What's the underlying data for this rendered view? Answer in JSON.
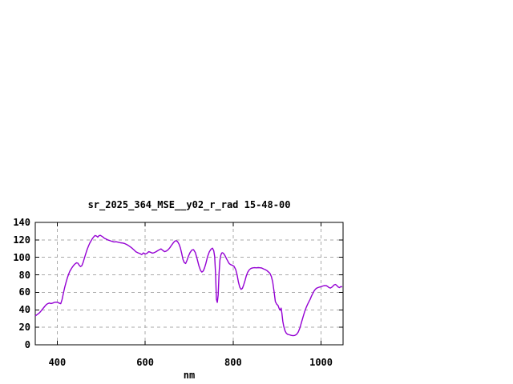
{
  "window": {
    "background": "#ffffff"
  },
  "chart_data": {
    "type": "line",
    "title": "sr_2025_364_MSE__y02_r_rad 15-48-00",
    "xlabel": "nm",
    "ylabel": "",
    "xlim": [
      350,
      1050
    ],
    "ylim": [
      0,
      140
    ],
    "x_ticks": [
      400,
      600,
      800,
      1000
    ],
    "y_ticks": [
      0,
      20,
      40,
      60,
      80,
      100,
      120,
      140
    ],
    "grid": true,
    "legend_position": "none",
    "colors": {
      "line": "#9400d3",
      "grid": "#aaaaaa",
      "axis": "#000000",
      "text": "#000000",
      "background": "#ffffff"
    },
    "series": [
      {
        "name": "sr_2025_364_MSE__y02_r_rad 15-48-00",
        "points": [
          [
            350,
            33
          ],
          [
            354,
            34.5
          ],
          [
            358,
            36
          ],
          [
            362,
            38
          ],
          [
            366,
            40.5
          ],
          [
            370,
            43
          ],
          [
            374,
            45.5
          ],
          [
            378,
            47
          ],
          [
            382,
            47.8
          ],
          [
            386,
            47.2
          ],
          [
            390,
            47.8
          ],
          [
            394,
            48.6
          ],
          [
            398,
            48.8
          ],
          [
            402,
            48.4
          ],
          [
            405,
            47.5
          ],
          [
            408,
            47
          ],
          [
            411,
            52
          ],
          [
            414,
            59
          ],
          [
            417,
            66
          ],
          [
            420,
            71.5
          ],
          [
            423,
            76.5
          ],
          [
            426,
            81
          ],
          [
            429,
            84.5
          ],
          [
            432,
            87
          ],
          [
            435,
            89.3
          ],
          [
            438,
            91.3
          ],
          [
            441,
            92.8
          ],
          [
            444,
            93.8
          ],
          [
            447,
            93.3
          ],
          [
            450,
            91
          ],
          [
            453,
            89.5
          ],
          [
            456,
            90.5
          ],
          [
            459,
            94.5
          ],
          [
            462,
            99.5
          ],
          [
            465,
            104.5
          ],
          [
            468,
            109
          ],
          [
            471,
            113
          ],
          [
            474,
            116.3
          ],
          [
            477,
            119
          ],
          [
            480,
            121.5
          ],
          [
            483,
            123.5
          ],
          [
            486,
            125
          ],
          [
            489,
            124.4
          ],
          [
            492,
            123.2
          ],
          [
            495,
            124.8
          ],
          [
            498,
            125.2
          ],
          [
            501,
            124.3
          ],
          [
            504,
            123.3
          ],
          [
            507,
            122
          ],
          [
            511,
            121
          ],
          [
            515,
            120
          ],
          [
            519,
            119.3
          ],
          [
            524,
            118.4
          ],
          [
            529,
            117.7
          ],
          [
            534,
            117.9
          ],
          [
            539,
            117.3
          ],
          [
            544,
            116.7
          ],
          [
            549,
            116.4
          ],
          [
            554,
            115.7
          ],
          [
            559,
            114.4
          ],
          [
            564,
            112.8
          ],
          [
            569,
            111
          ],
          [
            574,
            108.8
          ],
          [
            579,
            106.4
          ],
          [
            584,
            105.1
          ],
          [
            588,
            104.3
          ],
          [
            592,
            103.2
          ],
          [
            596,
            105.1
          ],
          [
            600,
            103.9
          ],
          [
            604,
            104.6
          ],
          [
            608,
            106.5
          ],
          [
            612,
            105.9
          ],
          [
            616,
            104.9
          ],
          [
            620,
            105.3
          ],
          [
            624,
            106.2
          ],
          [
            628,
            107.5
          ],
          [
            632,
            108.7
          ],
          [
            636,
            109.7
          ],
          [
            640,
            108
          ],
          [
            644,
            106.5
          ],
          [
            648,
            107.2
          ],
          [
            652,
            108.7
          ],
          [
            656,
            111
          ],
          [
            660,
            114
          ],
          [
            664,
            116.8
          ],
          [
            668,
            118.8
          ],
          [
            671,
            119
          ],
          [
            674,
            117.8
          ],
          [
            677,
            115
          ],
          [
            680,
            111
          ],
          [
            683,
            104.5
          ],
          [
            686,
            97.5
          ],
          [
            689,
            94
          ],
          [
            692,
            93
          ],
          [
            695,
            96.5
          ],
          [
            698,
            101
          ],
          [
            702,
            105.5
          ],
          [
            706,
            108.3
          ],
          [
            710,
            108.8
          ],
          [
            714,
            105.5
          ],
          [
            718,
            98.5
          ],
          [
            722,
            90.5
          ],
          [
            726,
            84.8
          ],
          [
            729,
            83.2
          ],
          [
            732,
            84.5
          ],
          [
            735,
            88
          ],
          [
            738,
            93
          ],
          [
            742,
            101
          ],
          [
            746,
            106.5
          ],
          [
            750,
            109.5
          ],
          [
            753,
            110.5
          ],
          [
            756,
            107.5
          ],
          [
            758,
            101
          ],
          [
            760,
            82
          ],
          [
            762,
            52
          ],
          [
            764,
            48.5
          ],
          [
            766,
            57
          ],
          [
            768,
            82
          ],
          [
            770,
            97
          ],
          [
            772,
            102.5
          ],
          [
            774,
            105
          ],
          [
            776,
            105.3
          ],
          [
            779,
            104
          ],
          [
            782,
            101.5
          ],
          [
            785,
            98.5
          ],
          [
            788,
            95.5
          ],
          [
            791,
            93
          ],
          [
            794,
            91.8
          ],
          [
            798,
            91
          ],
          [
            802,
            89.8
          ],
          [
            806,
            86
          ],
          [
            809,
            80
          ],
          [
            812,
            72
          ],
          [
            815,
            66
          ],
          [
            818,
            63.4
          ],
          [
            821,
            64.5
          ],
          [
            824,
            68.5
          ],
          [
            827,
            73.5
          ],
          [
            830,
            79
          ],
          [
            833,
            83
          ],
          [
            837,
            86
          ],
          [
            841,
            87.5
          ],
          [
            845,
            88
          ],
          [
            849,
            88.2
          ],
          [
            853,
            88
          ],
          [
            857,
            88.3
          ],
          [
            861,
            88.1
          ],
          [
            865,
            87.8
          ],
          [
            869,
            86.8
          ],
          [
            873,
            86
          ],
          [
            877,
            84.8
          ],
          [
            881,
            83
          ],
          [
            884,
            81.5
          ],
          [
            887,
            78
          ],
          [
            890,
            72
          ],
          [
            893,
            61
          ],
          [
            896,
            49.5
          ],
          [
            899,
            46.5
          ],
          [
            902,
            45
          ],
          [
            905,
            41
          ],
          [
            907,
            39.6
          ],
          [
            909,
            42
          ],
          [
            911,
            36
          ],
          [
            913,
            27
          ],
          [
            915,
            21.5
          ],
          [
            918,
            16
          ],
          [
            921,
            13.2
          ],
          [
            924,
            12
          ],
          [
            928,
            11.4
          ],
          [
            932,
            10.8
          ],
          [
            936,
            10.4
          ],
          [
            940,
            10.7
          ],
          [
            944,
            11.8
          ],
          [
            948,
            14.5
          ],
          [
            952,
            19.5
          ],
          [
            956,
            26.5
          ],
          [
            960,
            33.5
          ],
          [
            963,
            38.5
          ],
          [
            966,
            42.5
          ],
          [
            969,
            46
          ],
          [
            972,
            49
          ],
          [
            975,
            52
          ],
          [
            978,
            55.5
          ],
          [
            981,
            58.5
          ],
          [
            984,
            61.5
          ],
          [
            987,
            63.5
          ],
          [
            990,
            64.8
          ],
          [
            993,
            65.4
          ],
          [
            996,
            66
          ],
          [
            1000,
            66.5
          ],
          [
            1004,
            67.3
          ],
          [
            1008,
            67.8
          ],
          [
            1012,
            67.6
          ],
          [
            1015,
            66.7
          ],
          [
            1018,
            65.5
          ],
          [
            1021,
            64.9
          ],
          [
            1024,
            65.7
          ],
          [
            1027,
            67.2
          ],
          [
            1030,
            68.6
          ],
          [
            1033,
            69
          ],
          [
            1036,
            67.7
          ],
          [
            1039,
            66.1
          ],
          [
            1042,
            65.4
          ],
          [
            1045,
            66.6
          ],
          [
            1048,
            66.2
          ]
        ]
      }
    ]
  }
}
